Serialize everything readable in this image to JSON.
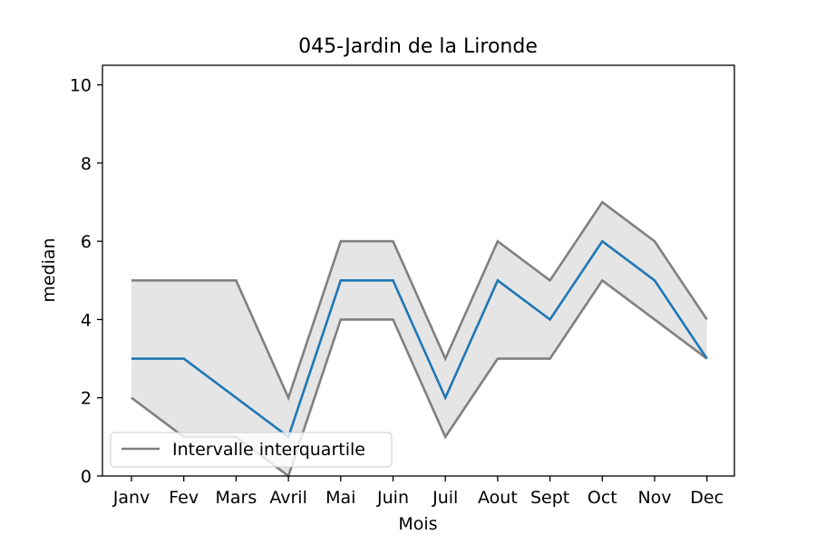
{
  "chart_data": {
    "type": "line",
    "title": "045-Jardin de la Lironde",
    "xlabel": "Mois",
    "ylabel": "median",
    "categories": [
      "Janv",
      "Fev",
      "Mars",
      "Avril",
      "Mai",
      "Juin",
      "Juil",
      "Aout",
      "Sept",
      "Oct",
      "Nov",
      "Dec"
    ],
    "series": [
      {
        "values": [
          3,
          3,
          2,
          1,
          5,
          5,
          2,
          5,
          4,
          6,
          5,
          3
        ]
      }
    ],
    "interquartile": {
      "name": "Intervalle interquartile",
      "upper": [
        5,
        5,
        5,
        2,
        6,
        6,
        3,
        6,
        5,
        7,
        6,
        4
      ],
      "lower": [
        2,
        1,
        1,
        0,
        4,
        4,
        1,
        3,
        3,
        5,
        4,
        3
      ]
    },
    "ylim": [
      0,
      10.5
    ],
    "yticks": [
      0,
      2,
      4,
      6,
      8,
      10
    ],
    "grid": false,
    "legend_position": "lower-left",
    "colors": {
      "median": "#1f77b4",
      "iqr_line": "#808080",
      "iqr_fill": "#e5e5e5"
    }
  }
}
